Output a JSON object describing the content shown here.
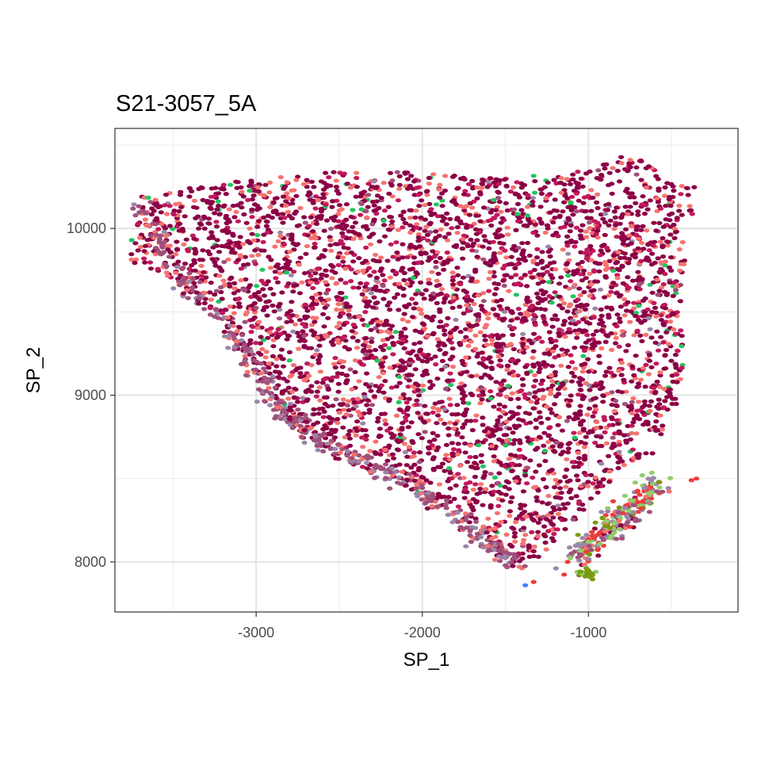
{
  "chart_data": {
    "type": "scatter",
    "title": "S21-3057_5A",
    "xlabel": "SP_1",
    "ylabel": "SP_2",
    "xlim": [
      -3850,
      -100
    ],
    "ylim": [
      7700,
      10600
    ],
    "x_ticks": [
      -3000,
      -2000,
      -1000
    ],
    "x_tick_labels": [
      "-3000",
      "-2000",
      "-1000"
    ],
    "y_ticks": [
      8000,
      9000,
      10000
    ],
    "y_tick_labels": [
      "8000",
      "9000",
      "10000"
    ],
    "grid": true,
    "legend": "none",
    "colors": {
      "dominant": "#8b0046",
      "secondary": "#c2185b",
      "salmon": "#f4736f",
      "mauve": "#a0507a",
      "green": "#22c55e",
      "grey_purple": "#9a86a8",
      "light_green": "#8fce6a",
      "red": "#ee3b3b",
      "olive": "#7a9a10",
      "blue": "#3b82f6"
    },
    "regions": {
      "main_body_polygon": [
        [
          -3700,
          10200
        ],
        [
          -3000,
          10300
        ],
        [
          -2400,
          10350
        ],
        [
          -1900,
          10330
        ],
        [
          -1500,
          10300
        ],
        [
          -1000,
          10350
        ],
        [
          -700,
          10470
        ],
        [
          -550,
          10300
        ],
        [
          -350,
          10250
        ],
        [
          -420,
          9800
        ],
        [
          -450,
          9500
        ],
        [
          -420,
          9250
        ],
        [
          -470,
          8950
        ],
        [
          -550,
          8800
        ],
        [
          -600,
          8650
        ],
        [
          -800,
          8550
        ],
        [
          -1000,
          8350
        ],
        [
          -1150,
          8150
        ],
        [
          -1400,
          7950
        ],
        [
          -1500,
          7980
        ],
        [
          -1700,
          8200
        ],
        [
          -1900,
          8350
        ],
        [
          -2200,
          8500
        ],
        [
          -2500,
          8600
        ],
        [
          -2800,
          8800
        ],
        [
          -3000,
          9100
        ],
        [
          -3200,
          9450
        ],
        [
          -3500,
          9700
        ],
        [
          -3750,
          9800
        ],
        [
          -3780,
          10000
        ]
      ],
      "edge_band": [
        [
          -3700,
          10150
        ],
        [
          -3500,
          9750
        ],
        [
          -3200,
          9450
        ],
        [
          -3000,
          9150
        ],
        [
          -2850,
          8900
        ],
        [
          -2650,
          8750
        ],
        [
          -2400,
          8620
        ],
        [
          -2100,
          8480
        ],
        [
          -1850,
          8300
        ],
        [
          -1600,
          8100
        ],
        [
          -1400,
          7980
        ]
      ],
      "tip_cluster_center": [
        -850,
        8250
      ],
      "tip_cluster_axis": [
        [
          -1100,
          8000
        ],
        [
          -600,
          8450
        ]
      ]
    }
  }
}
